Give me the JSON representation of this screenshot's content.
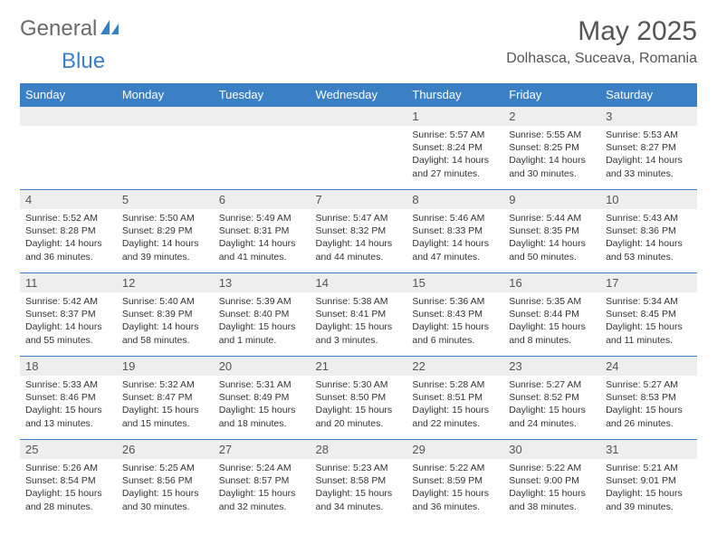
{
  "brand": {
    "part1": "General",
    "part2": "Blue"
  },
  "title": "May 2025",
  "location": "Dolhasca, Suceava, Romania",
  "colors": {
    "header_bg": "#3b7fc4",
    "header_text": "#ffffff",
    "daynum_bg": "#eeeeee",
    "row_border": "#3b7fc4",
    "body_text": "#333333",
    "title_text": "#555555"
  },
  "weekdays": [
    "Sunday",
    "Monday",
    "Tuesday",
    "Wednesday",
    "Thursday",
    "Friday",
    "Saturday"
  ],
  "weeks": [
    [
      null,
      null,
      null,
      null,
      {
        "d": "1",
        "sr": "5:57 AM",
        "ss": "8:24 PM",
        "dl": "14 hours and 27 minutes."
      },
      {
        "d": "2",
        "sr": "5:55 AM",
        "ss": "8:25 PM",
        "dl": "14 hours and 30 minutes."
      },
      {
        "d": "3",
        "sr": "5:53 AM",
        "ss": "8:27 PM",
        "dl": "14 hours and 33 minutes."
      }
    ],
    [
      {
        "d": "4",
        "sr": "5:52 AM",
        "ss": "8:28 PM",
        "dl": "14 hours and 36 minutes."
      },
      {
        "d": "5",
        "sr": "5:50 AM",
        "ss": "8:29 PM",
        "dl": "14 hours and 39 minutes."
      },
      {
        "d": "6",
        "sr": "5:49 AM",
        "ss": "8:31 PM",
        "dl": "14 hours and 41 minutes."
      },
      {
        "d": "7",
        "sr": "5:47 AM",
        "ss": "8:32 PM",
        "dl": "14 hours and 44 minutes."
      },
      {
        "d": "8",
        "sr": "5:46 AM",
        "ss": "8:33 PM",
        "dl": "14 hours and 47 minutes."
      },
      {
        "d": "9",
        "sr": "5:44 AM",
        "ss": "8:35 PM",
        "dl": "14 hours and 50 minutes."
      },
      {
        "d": "10",
        "sr": "5:43 AM",
        "ss": "8:36 PM",
        "dl": "14 hours and 53 minutes."
      }
    ],
    [
      {
        "d": "11",
        "sr": "5:42 AM",
        "ss": "8:37 PM",
        "dl": "14 hours and 55 minutes."
      },
      {
        "d": "12",
        "sr": "5:40 AM",
        "ss": "8:39 PM",
        "dl": "14 hours and 58 minutes."
      },
      {
        "d": "13",
        "sr": "5:39 AM",
        "ss": "8:40 PM",
        "dl": "15 hours and 1 minute."
      },
      {
        "d": "14",
        "sr": "5:38 AM",
        "ss": "8:41 PM",
        "dl": "15 hours and 3 minutes."
      },
      {
        "d": "15",
        "sr": "5:36 AM",
        "ss": "8:43 PM",
        "dl": "15 hours and 6 minutes."
      },
      {
        "d": "16",
        "sr": "5:35 AM",
        "ss": "8:44 PM",
        "dl": "15 hours and 8 minutes."
      },
      {
        "d": "17",
        "sr": "5:34 AM",
        "ss": "8:45 PM",
        "dl": "15 hours and 11 minutes."
      }
    ],
    [
      {
        "d": "18",
        "sr": "5:33 AM",
        "ss": "8:46 PM",
        "dl": "15 hours and 13 minutes."
      },
      {
        "d": "19",
        "sr": "5:32 AM",
        "ss": "8:47 PM",
        "dl": "15 hours and 15 minutes."
      },
      {
        "d": "20",
        "sr": "5:31 AM",
        "ss": "8:49 PM",
        "dl": "15 hours and 18 minutes."
      },
      {
        "d": "21",
        "sr": "5:30 AM",
        "ss": "8:50 PM",
        "dl": "15 hours and 20 minutes."
      },
      {
        "d": "22",
        "sr": "5:28 AM",
        "ss": "8:51 PM",
        "dl": "15 hours and 22 minutes."
      },
      {
        "d": "23",
        "sr": "5:27 AM",
        "ss": "8:52 PM",
        "dl": "15 hours and 24 minutes."
      },
      {
        "d": "24",
        "sr": "5:27 AM",
        "ss": "8:53 PM",
        "dl": "15 hours and 26 minutes."
      }
    ],
    [
      {
        "d": "25",
        "sr": "5:26 AM",
        "ss": "8:54 PM",
        "dl": "15 hours and 28 minutes."
      },
      {
        "d": "26",
        "sr": "5:25 AM",
        "ss": "8:56 PM",
        "dl": "15 hours and 30 minutes."
      },
      {
        "d": "27",
        "sr": "5:24 AM",
        "ss": "8:57 PM",
        "dl": "15 hours and 32 minutes."
      },
      {
        "d": "28",
        "sr": "5:23 AM",
        "ss": "8:58 PM",
        "dl": "15 hours and 34 minutes."
      },
      {
        "d": "29",
        "sr": "5:22 AM",
        "ss": "8:59 PM",
        "dl": "15 hours and 36 minutes."
      },
      {
        "d": "30",
        "sr": "5:22 AM",
        "ss": "9:00 PM",
        "dl": "15 hours and 38 minutes."
      },
      {
        "d": "31",
        "sr": "5:21 AM",
        "ss": "9:01 PM",
        "dl": "15 hours and 39 minutes."
      }
    ]
  ],
  "labels": {
    "sunrise": "Sunrise:",
    "sunset": "Sunset:",
    "daylight": "Daylight:"
  }
}
